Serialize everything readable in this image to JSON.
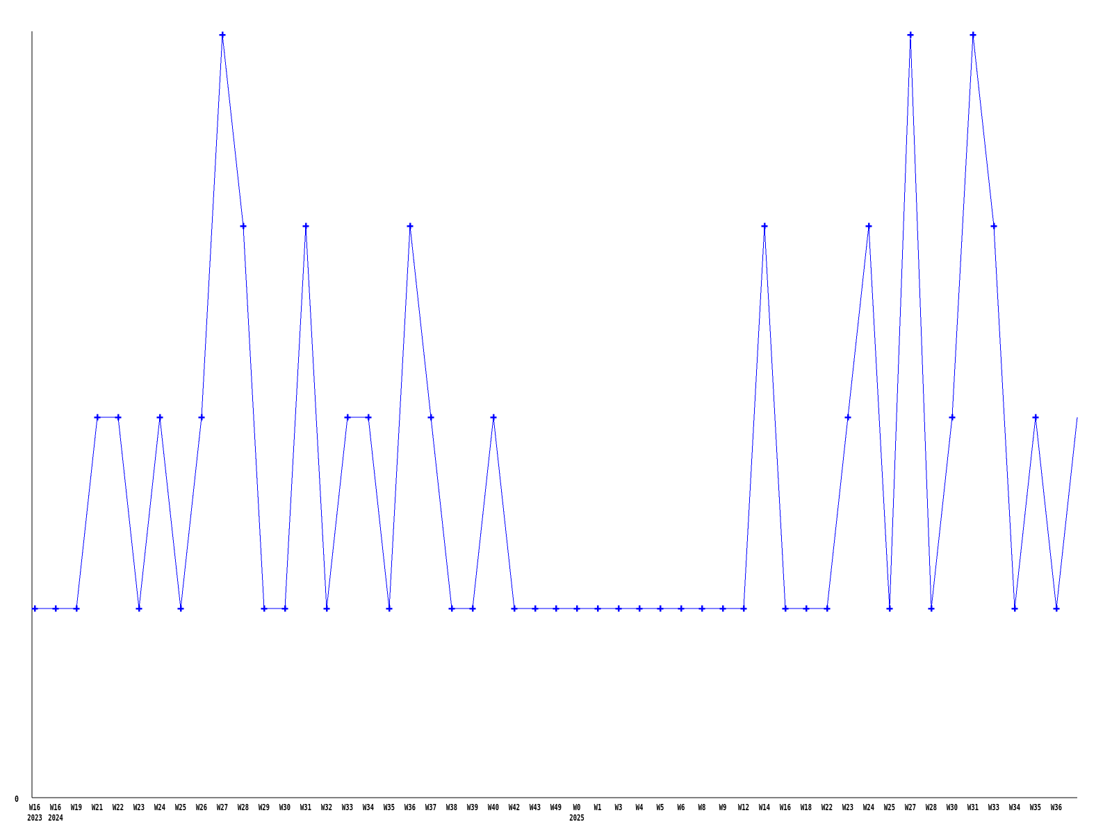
{
  "page": {
    "background_color": "#ffffff"
  },
  "chart_data": {
    "type": "line",
    "title": "",
    "xlabel": "",
    "ylabel": "",
    "grid": false,
    "legend": null,
    "line_color": "#0000ff",
    "axis_color": "#000000",
    "label_color": "#000000",
    "marker_style": "plus",
    "ylim": [
      0,
      4.2
    ],
    "y_axis": {
      "zero_label": "0"
    },
    "categories": [
      "W16",
      "W16",
      "W19",
      "W21",
      "W22",
      "W23",
      "W24",
      "W25",
      "W26",
      "W27",
      "W28",
      "W29",
      "W30",
      "W31",
      "W32",
      "W33",
      "W34",
      "W35",
      "W36",
      "W37",
      "W38",
      "W39",
      "W40",
      "W42",
      "W43",
      "W49",
      "W0",
      "W1",
      "W3",
      "W4",
      "W5",
      "W6",
      "W8",
      "W9",
      "W12",
      "W14",
      "W16",
      "W18",
      "W22",
      "W23",
      "W24",
      "W25",
      "W27",
      "W28",
      "W30",
      "W31",
      "W33",
      "W34",
      "W35",
      "W36",
      ""
    ],
    "values": [
      1,
      1,
      1,
      2,
      2,
      1,
      2,
      1,
      2,
      4,
      3,
      1,
      1,
      3,
      1,
      2,
      2,
      1,
      3,
      2,
      1,
      1,
      2,
      1,
      1,
      1,
      1,
      1,
      1,
      1,
      1,
      1,
      1,
      1,
      1,
      3,
      1,
      1,
      1,
      2,
      3,
      1,
      4,
      1,
      2,
      4,
      3,
      1,
      2,
      1,
      2
    ],
    "year_labels": [
      {
        "index": 0,
        "label": "2023"
      },
      {
        "index": 1,
        "label": "2024"
      },
      {
        "index": 26,
        "label": "2025"
      }
    ]
  }
}
